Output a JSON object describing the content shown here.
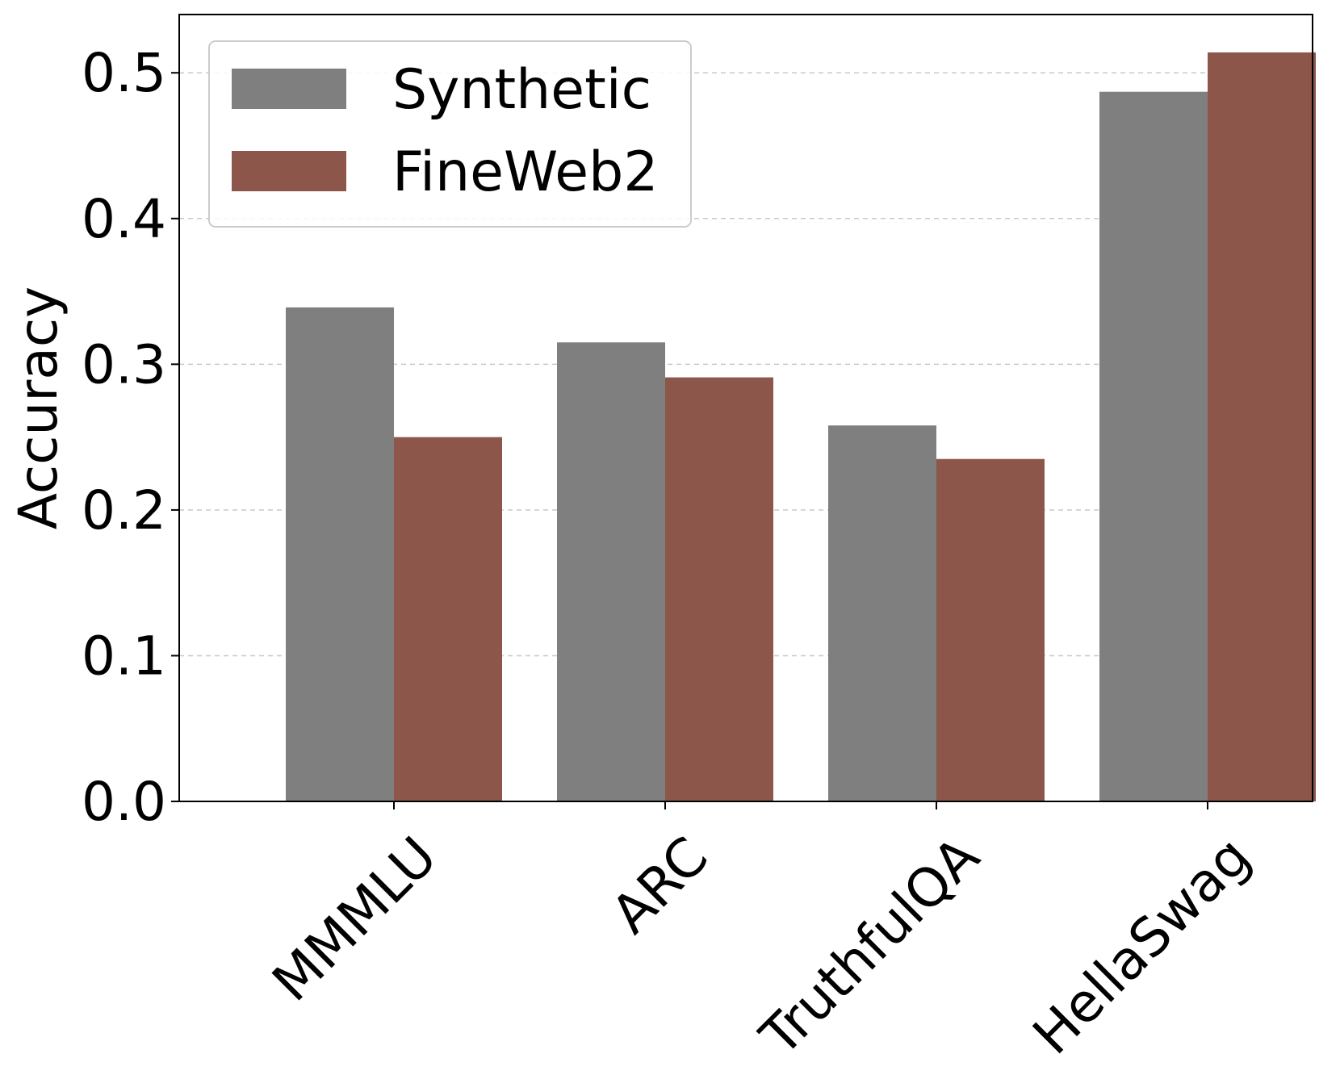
{
  "chart_data": {
    "type": "bar",
    "title": "",
    "xlabel": "",
    "ylabel": "Accuracy",
    "categories": [
      "MMMLU",
      "ARC",
      "TruthfulQA",
      "HellaSwag"
    ],
    "series": [
      {
        "name": "Synthetic",
        "values": [
          0.339,
          0.315,
          0.258,
          0.487
        ],
        "color": "#7f7f7f"
      },
      {
        "name": "FineWeb2",
        "values": [
          0.25,
          0.291,
          0.235,
          0.514
        ],
        "color": "#8c564b"
      }
    ],
    "ylim": [
      0,
      0.54
    ],
    "yticks": [
      "0.0",
      "0.1",
      "0.2",
      "0.3",
      "0.4",
      "0.5"
    ],
    "grid": "y dashed",
    "legend_position": "top-left"
  }
}
